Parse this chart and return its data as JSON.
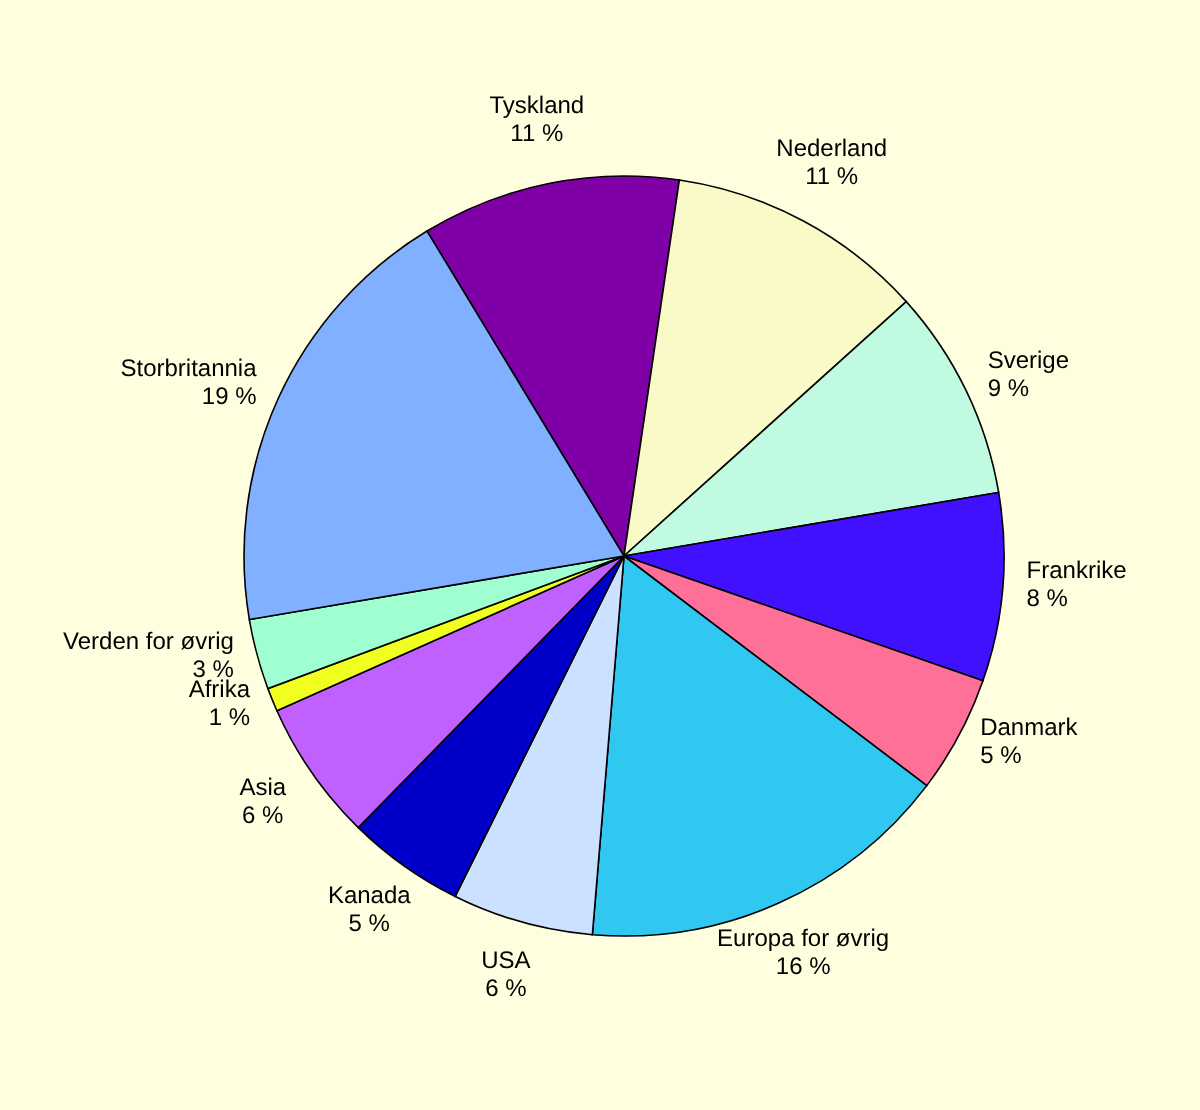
{
  "chart_data": {
    "type": "pie",
    "categories": [
      "Tyskland",
      "Nederland",
      "Sverige",
      "Frankrike",
      "Danmark",
      "Europa for øvrig",
      "USA",
      "Kanada",
      "Asia",
      "Afrika",
      "Verden for øvrig",
      "Storbritannia"
    ],
    "values": [
      11,
      11,
      9,
      8,
      5,
      16,
      6,
      5,
      6,
      1,
      3,
      19
    ],
    "value_labels": [
      "11 %",
      "11 %",
      "9 %",
      "8 %",
      "5 %",
      "16 %",
      "6 %",
      "5 %",
      "6 %",
      "1 %",
      "3 %",
      "19 %"
    ],
    "colors": [
      "#8000a8",
      "#fafac8",
      "#c0fae0",
      "#4010ff",
      "#ff7098",
      "#30c8f0",
      "#cce0ff",
      "#0000c8",
      "#c060ff",
      "#f0ff20",
      "#a0ffd0",
      "#80b0ff"
    ],
    "legend": false
  }
}
